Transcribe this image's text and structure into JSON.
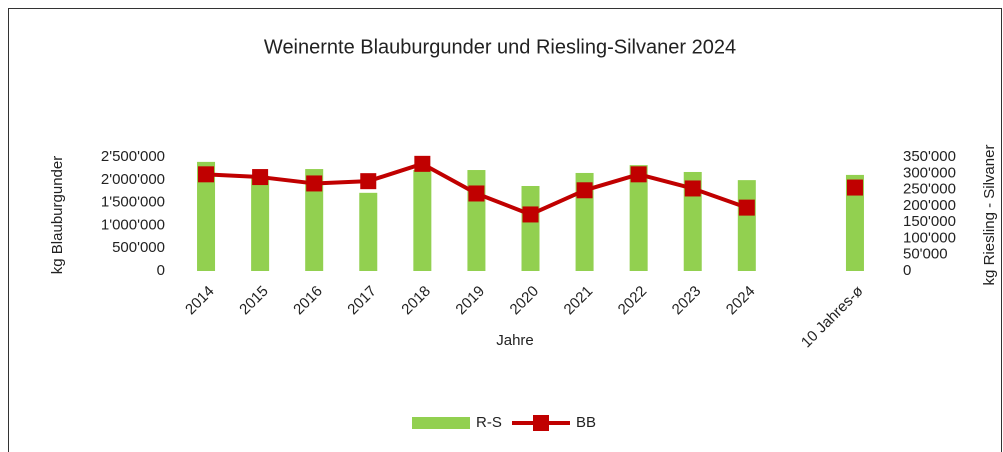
{
  "chart_data": {
    "type": "bar-line",
    "title": "Weinernte Blauburgunder und Riesling-Silvaner 2024",
    "x_label": "Jahre",
    "y_label": "kg Blauburgunder",
    "y2_label": "kg Riesling - Silvaner",
    "categories": [
      "2014",
      "2015",
      "2016",
      "2017",
      "2018",
      "2019",
      "2020",
      "2021",
      "2022",
      "2023",
      "2024",
      null,
      "10 Jahres-ø"
    ],
    "series": [
      {
        "name": "R-S",
        "type": "bar",
        "axis": "y2",
        "color": "#92d050",
        "values": [
          335000,
          292000,
          313000,
          240000,
          310000,
          310000,
          261000,
          301000,
          325000,
          304000,
          279000,
          null,
          295000
        ]
      },
      {
        "name": "BB",
        "type": "line",
        "axis": "y",
        "color": "#c00000",
        "values": [
          2120000,
          2060000,
          1920000,
          1970000,
          2350000,
          1700000,
          1240000,
          1770000,
          2120000,
          1810000,
          1390000,
          null,
          1830000
        ]
      }
    ],
    "ylim": [
      0,
      2500000
    ],
    "yticks": [
      0,
      {
        "value": 500000,
        "label": "500'000"
      },
      {
        "value": 1000000,
        "label": "1'000'000"
      },
      {
        "value": 1500000,
        "label": "1'500'000"
      },
      {
        "value": 2000000,
        "label": "2'000'000"
      },
      {
        "value": 2500000,
        "label": "2'500'000"
      }
    ],
    "y2lim": [
      0,
      350000
    ],
    "y2ticks": [
      0,
      {
        "value": 50000,
        "label": "50'000"
      },
      {
        "value": 100000,
        "label": "100'000"
      },
      {
        "value": 150000,
        "label": "150'000"
      },
      {
        "value": 200000,
        "label": "200'000"
      },
      {
        "value": 250000,
        "label": "250'000"
      },
      {
        "value": 300000,
        "label": "300'000"
      },
      {
        "value": 350000,
        "label": "350'000"
      }
    ],
    "legend": "bottom",
    "grid": false
  }
}
